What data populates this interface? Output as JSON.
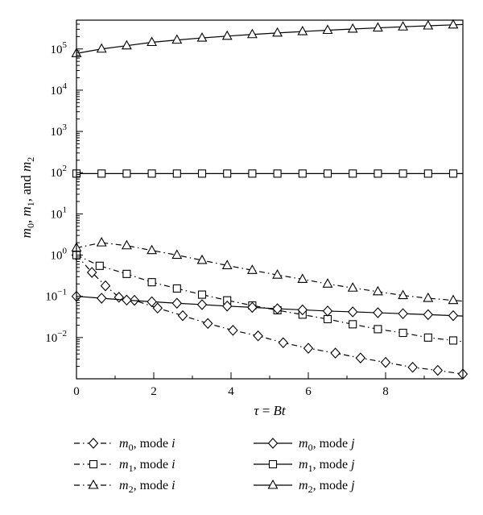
{
  "chart_data": {
    "type": "line",
    "y_scale": "log",
    "xlim": [
      0,
      10
    ],
    "ylim": [
      0.001,
      500000
    ],
    "x_ticks": [
      {
        "v": 0,
        "label": "0"
      },
      {
        "v": 2,
        "label": "2"
      },
      {
        "v": 4,
        "label": "4"
      },
      {
        "v": 6,
        "label": "6"
      },
      {
        "v": 8,
        "label": "8"
      }
    ],
    "y_ticks": [
      {
        "exp": -2,
        "base": "10",
        "sup": "−2"
      },
      {
        "exp": -1,
        "base": "10",
        "sup": "−1"
      },
      {
        "exp": 0,
        "base": "10",
        "sup": "0"
      },
      {
        "exp": 1,
        "base": "10",
        "sup": "1"
      },
      {
        "exp": 2,
        "base": "10",
        "sup": "2"
      },
      {
        "exp": 3,
        "base": "10",
        "sup": "3"
      },
      {
        "exp": 4,
        "base": "10",
        "sup": "4"
      },
      {
        "exp": 5,
        "base": "10",
        "sup": "5"
      }
    ],
    "xlabel": "τ = Bt",
    "ylabel": "m0, m1, and m2",
    "grid": false,
    "legend_position": "bottom",
    "series": [
      {
        "name": "m0, mode i",
        "marker": "diamond",
        "dash": "dashdot",
        "x": [
          0,
          0.4,
          0.75,
          1.1,
          1.5,
          2.1,
          2.75,
          3.4,
          4.05,
          4.7,
          5.35,
          6,
          6.7,
          7.35,
          8,
          8.7,
          9.35,
          10
        ],
        "y": [
          1.0,
          0.38,
          0.18,
          0.095,
          0.08,
          0.052,
          0.034,
          0.022,
          0.015,
          0.011,
          0.0075,
          0.0055,
          0.0042,
          0.0032,
          0.0025,
          0.0019,
          0.0016,
          0.0013
        ]
      },
      {
        "name": "m1, mode i",
        "marker": "square",
        "dash": "dashdot",
        "x": [
          0,
          0.6,
          1.3,
          1.95,
          2.6,
          3.25,
          3.9,
          4.55,
          5.2,
          5.85,
          6.5,
          7.15,
          7.8,
          8.45,
          9.1,
          9.75
        ],
        "y": [
          1.0,
          0.55,
          0.35,
          0.22,
          0.155,
          0.11,
          0.08,
          0.06,
          0.046,
          0.036,
          0.028,
          0.021,
          0.016,
          0.013,
          0.01,
          0.0085
        ]
      },
      {
        "name": "m2, mode i",
        "marker": "triangle",
        "dash": "dashdot",
        "x": [
          0,
          0.65,
          1.3,
          1.95,
          2.6,
          3.25,
          3.9,
          4.55,
          5.2,
          5.85,
          6.5,
          7.15,
          7.8,
          8.45,
          9.1,
          9.75
        ],
        "y": [
          1.5,
          2.0,
          1.7,
          1.3,
          1.0,
          0.75,
          0.56,
          0.43,
          0.33,
          0.26,
          0.2,
          0.16,
          0.13,
          0.105,
          0.09,
          0.08
        ]
      },
      {
        "name": "m0, mode j",
        "marker": "diamond",
        "dash": "solid",
        "x": [
          0,
          0.65,
          1.3,
          1.95,
          2.6,
          3.25,
          3.9,
          4.55,
          5.2,
          5.85,
          6.5,
          7.15,
          7.8,
          8.45,
          9.1,
          9.75
        ],
        "y": [
          0.1,
          0.09,
          0.081,
          0.074,
          0.068,
          0.063,
          0.058,
          0.054,
          0.05,
          0.047,
          0.044,
          0.042,
          0.04,
          0.038,
          0.036,
          0.034
        ]
      },
      {
        "name": "m1, mode j",
        "marker": "square",
        "dash": "solid",
        "x": [
          0,
          0.65,
          1.3,
          1.95,
          2.6,
          3.25,
          3.9,
          4.55,
          5.2,
          5.85,
          6.5,
          7.15,
          7.8,
          8.45,
          9.1,
          9.75
        ],
        "y": [
          95,
          95,
          95,
          95,
          95,
          95,
          95,
          95,
          95,
          95,
          95,
          95,
          95,
          95,
          95,
          95
        ]
      },
      {
        "name": "m2, mode j",
        "marker": "triangle",
        "dash": "solid",
        "x": [
          0,
          0.65,
          1.3,
          1.95,
          2.6,
          3.25,
          3.9,
          4.55,
          5.2,
          5.85,
          6.5,
          7.15,
          7.8,
          8.45,
          9.1,
          9.75
        ],
        "y": [
          78000,
          100000,
          120000,
          145000,
          165000,
          185000,
          205000,
          225000,
          245000,
          265000,
          285000,
          305000,
          325000,
          345000,
          365000,
          385000
        ]
      }
    ]
  },
  "legend": {
    "entries": [
      {
        "m": "m",
        "sub": "0",
        "rest": ", mode ",
        "mode": "i"
      },
      {
        "m": "m",
        "sub": "1",
        "rest": ", mode ",
        "mode": "i"
      },
      {
        "m": "m",
        "sub": "2",
        "rest": ", mode ",
        "mode": "i"
      },
      {
        "m": "m",
        "sub": "0",
        "rest": ", mode ",
        "mode": "j"
      },
      {
        "m": "m",
        "sub": "1",
        "rest": ", mode ",
        "mode": "j"
      },
      {
        "m": "m",
        "sub": "2",
        "rest": ", mode ",
        "mode": "j"
      }
    ]
  },
  "axis_text": {
    "xlabel_tau": "τ",
    "xlabel_eq": " = ",
    "xlabel_bt": "Bt",
    "ylabel_m0": "m",
    "ylabel_s0": "0",
    "ylabel_c1": ", ",
    "ylabel_m1": "m",
    "ylabel_s1": "1",
    "ylabel_and": ", and ",
    "ylabel_m2": "m",
    "ylabel_s2": "2"
  }
}
